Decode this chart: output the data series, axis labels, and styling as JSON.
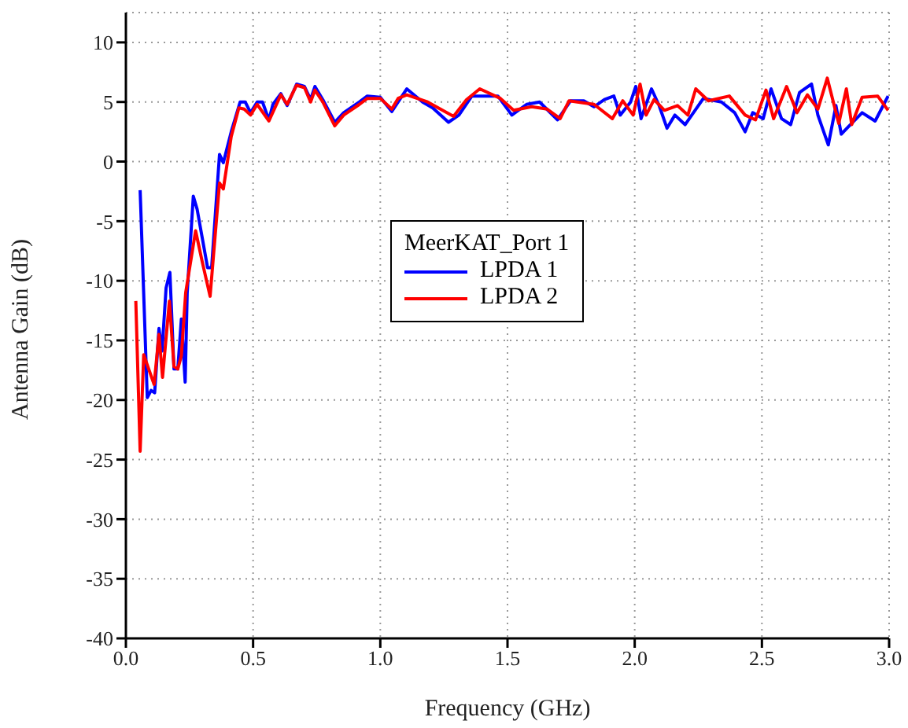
{
  "chart_data": {
    "type": "line",
    "xlabel": "Frequency (GHz)",
    "ylabel": "Antenna Gain (dB)",
    "legend_title": "MeerKAT_Port 1",
    "xlim": [
      0,
      3
    ],
    "ylim": [
      -40,
      12.5
    ],
    "xticks": [
      {
        "value": 0,
        "label": "0.0"
      },
      {
        "value": 0.5,
        "label": "0.5"
      },
      {
        "value": 1,
        "label": "1.0"
      },
      {
        "value": 1.5,
        "label": "1.5"
      },
      {
        "value": 2,
        "label": "2.0"
      },
      {
        "value": 2.5,
        "label": "2.5"
      },
      {
        "value": 3,
        "label": "3.0"
      }
    ],
    "yticks": [
      -40,
      -35,
      -30,
      -25,
      -20,
      -15,
      -10,
      -5,
      0,
      5,
      10
    ],
    "grid": true,
    "legend": "center",
    "marker": "none",
    "line_style": "solid",
    "series": [
      {
        "name": "LPDA 1",
        "color": "#0000ff",
        "x": [
          0.056,
          0.084,
          0.099,
          0.113,
          0.13,
          0.142,
          0.158,
          0.173,
          0.189,
          0.204,
          0.218,
          0.233,
          0.241,
          0.265,
          0.28,
          0.321,
          0.337,
          0.368,
          0.383,
          0.414,
          0.449,
          0.469,
          0.49,
          0.516,
          0.537,
          0.562,
          0.578,
          0.609,
          0.634,
          0.671,
          0.702,
          0.726,
          0.743,
          0.774,
          0.821,
          0.856,
          0.918,
          0.949,
          1.0,
          1.045,
          1.104,
          1.166,
          1.206,
          1.268,
          1.309,
          1.36,
          1.411,
          1.462,
          1.517,
          1.575,
          1.626,
          1.697,
          1.748,
          1.8,
          1.84,
          1.881,
          1.918,
          1.943,
          1.984,
          2.004,
          2.025,
          2.066,
          2.096,
          2.127,
          2.158,
          2.198,
          2.27,
          2.341,
          2.393,
          2.434,
          2.464,
          2.505,
          2.536,
          2.577,
          2.613,
          2.648,
          2.695,
          2.72,
          2.761,
          2.791,
          2.812,
          2.843,
          2.894,
          2.945,
          2.996
        ],
        "values": [
          -2.4,
          -19.8,
          -19.2,
          -19.4,
          -14,
          -15.9,
          -10.6,
          -9.3,
          -17.4,
          -17.4,
          -13.2,
          -18.5,
          -11,
          -2.9,
          -4,
          -8.9,
          -8.9,
          0.6,
          -0.1,
          2.5,
          5,
          5,
          4.1,
          5,
          5,
          3.5,
          4.8,
          5.7,
          4.7,
          6.5,
          6.3,
          5.2,
          6.3,
          5.2,
          3.3,
          4.1,
          5,
          5.5,
          5.4,
          4.2,
          6.1,
          5,
          4.5,
          3.3,
          3.9,
          5.5,
          5.5,
          5.5,
          3.9,
          4.8,
          5,
          3.5,
          5.1,
          5.1,
          4.6,
          5.2,
          5.5,
          3.9,
          5,
          6.3,
          3.6,
          6.1,
          4.7,
          2.8,
          3.9,
          3.1,
          5.3,
          5,
          4.1,
          2.5,
          4.1,
          3.6,
          6.1,
          3.6,
          3.1,
          5.8,
          6.5,
          3.9,
          1.4,
          4.7,
          2.3,
          3,
          4.1,
          3.4,
          5.5
        ]
      },
      {
        "name": "LPDA 2",
        "color": "#ff0000",
        "x": [
          0.039,
          0.056,
          0.07,
          0.111,
          0.13,
          0.144,
          0.171,
          0.189,
          0.204,
          0.218,
          0.235,
          0.274,
          0.3,
          0.331,
          0.368,
          0.383,
          0.414,
          0.444,
          0.465,
          0.49,
          0.516,
          0.562,
          0.609,
          0.634,
          0.671,
          0.702,
          0.726,
          0.743,
          0.774,
          0.821,
          0.856,
          0.918,
          0.949,
          1.0,
          1.045,
          1.07,
          1.104,
          1.186,
          1.288,
          1.339,
          1.391,
          1.472,
          1.524,
          1.595,
          1.656,
          1.707,
          1.742,
          1.84,
          1.912,
          1.953,
          1.994,
          2.021,
          2.045,
          2.076,
          2.117,
          2.168,
          2.209,
          2.24,
          2.29,
          2.372,
          2.434,
          2.475,
          2.516,
          2.546,
          2.597,
          2.638,
          2.679,
          2.72,
          2.757,
          2.802,
          2.832,
          2.853,
          2.894,
          2.955,
          2.996
        ],
        "values": [
          -11.7,
          -24.3,
          -16.2,
          -18.7,
          -14.5,
          -18.1,
          -11.7,
          -17.2,
          -17.4,
          -16.3,
          -11,
          -5.8,
          -8.4,
          -11.3,
          -1.8,
          -2.3,
          2.1,
          4.5,
          4.4,
          3.9,
          4.8,
          3.4,
          5.6,
          4.8,
          6.4,
          6.2,
          5,
          6,
          5,
          3,
          3.9,
          4.8,
          5.3,
          5.3,
          4.4,
          5.3,
          5.6,
          5,
          3.8,
          5.2,
          6.1,
          5.3,
          4.3,
          4.6,
          4.4,
          3.6,
          5.1,
          4.8,
          3.6,
          5.1,
          3.9,
          6.5,
          3.9,
          5.2,
          4.3,
          4.7,
          3.9,
          6.1,
          5.1,
          5.5,
          3.9,
          3.5,
          6,
          3.6,
          6.3,
          4.1,
          5.6,
          4.4,
          7,
          3.2,
          6.1,
          3.1,
          5.4,
          5.5,
          4.3
        ]
      }
    ]
  }
}
